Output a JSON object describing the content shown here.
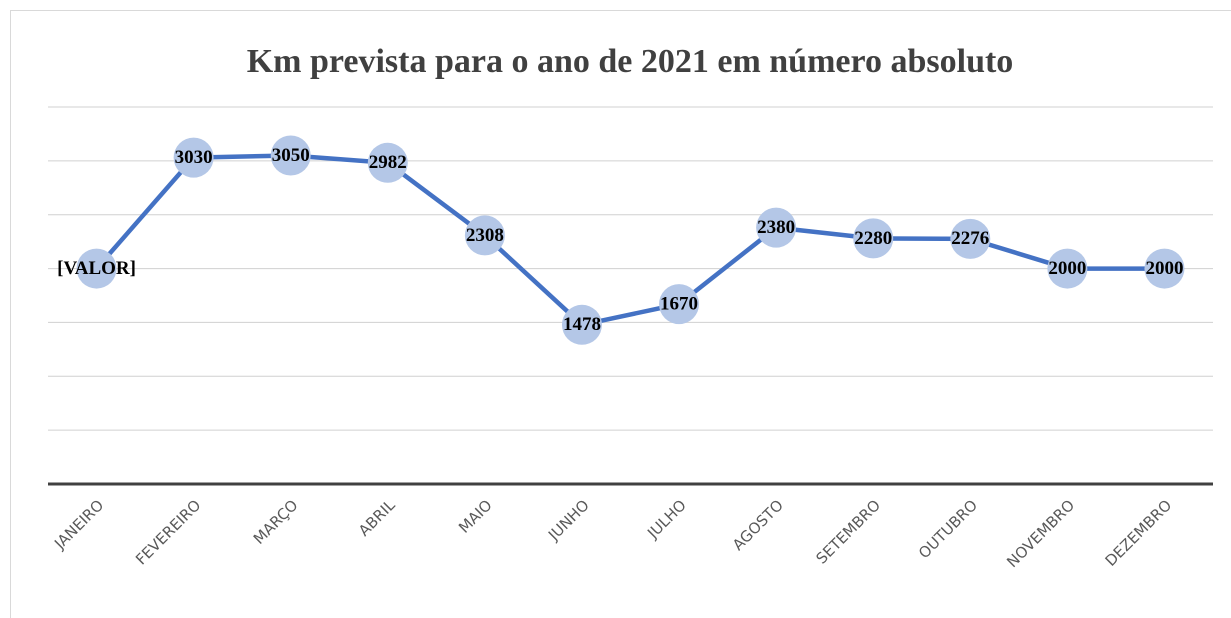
{
  "chart_data": {
    "type": "line",
    "title": "Km prevista para o ano de 2021 em número absoluto",
    "categories": [
      "JANEIRO",
      "FEVEREIRO",
      "MARÇO",
      "ABRIL",
      "MAIO",
      "JUNHO",
      "JULHO",
      "AGOSTO",
      "SETEMBRO",
      "OUTUBRO",
      "NOVEMBRO",
      "DEZEMBRO"
    ],
    "series": [
      {
        "name": "Km",
        "color": "#4472c4",
        "marker_color": "#b4c7e7",
        "values": [
          2000,
          3030,
          3050,
          2982,
          2308,
          1478,
          1670,
          2380,
          2280,
          2276,
          2000,
          2000
        ],
        "value_labels": [
          "[VALOR]",
          "3030",
          "3050",
          "2982",
          "2308",
          "1478",
          "1670",
          "2380",
          "2280",
          "2276",
          "2000",
          "2000"
        ]
      }
    ],
    "ylim": [
      0,
      3500
    ],
    "yticks": [
      0,
      500,
      1000,
      1500,
      2000,
      2500,
      3000,
      3500
    ],
    "grid": true
  }
}
